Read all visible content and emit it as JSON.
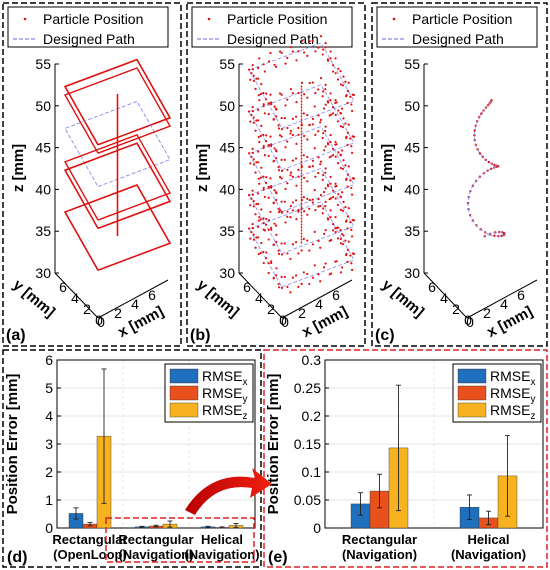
{
  "panels_3d": [
    {
      "label": "(a)",
      "legend": [
        "Particle Position",
        "Designed Path"
      ],
      "zlabel": "z [mm]",
      "ylabel": "y [mm]",
      "xlabel": "x [mm]",
      "zticks": [
        "55",
        "50",
        "45",
        "40",
        "35",
        "30"
      ],
      "yticks": [
        "6",
        "4",
        "2",
        "0"
      ],
      "xticks": [
        "0",
        "2",
        "4",
        "6"
      ]
    },
    {
      "label": "(b)",
      "legend": [
        "Particle Position",
        "Designed Path"
      ],
      "zlabel": "z [mm]",
      "ylabel": "y [mm]",
      "xlabel": "x [mm]",
      "zticks": [
        "55",
        "50",
        "45",
        "40",
        "35",
        "30"
      ],
      "yticks": [
        "6",
        "4",
        "2",
        "0"
      ],
      "xticks": [
        "0",
        "2",
        "4",
        "6"
      ]
    },
    {
      "label": "(c)",
      "legend": [
        "Particle Position",
        "Designed Path"
      ],
      "zlabel": "z [mm]",
      "ylabel": "y [mm]",
      "xlabel": "x [mm]",
      "zticks": [
        "55",
        "50",
        "45",
        "40",
        "35",
        "30"
      ],
      "yticks": [
        "6",
        "4",
        "2",
        "0"
      ],
      "xticks": [
        "0",
        "2",
        "4",
        "6"
      ]
    }
  ],
  "chart_data": [
    {
      "type": "bar",
      "panel": "(d)",
      "ylabel": "Position Error [mm]",
      "ylim": [
        0,
        6
      ],
      "yticks": [
        "0",
        "1",
        "2",
        "3",
        "4",
        "5",
        "6"
      ],
      "categories": [
        [
          "Rectangular",
          "(OpenLoop)"
        ],
        [
          "Rectangular",
          "(Navigation)"
        ],
        [
          "Helical",
          "(Navigation)"
        ]
      ],
      "series": [
        {
          "name": "RMSE",
          "sub": "x",
          "color": "#1f6fbd",
          "values": [
            0.52,
            0.04,
            0.04
          ],
          "err": [
            0.2,
            0.02,
            0.02
          ]
        },
        {
          "name": "RMSE",
          "sub": "y",
          "color": "#e8501c",
          "values": [
            0.14,
            0.07,
            0.02
          ],
          "err": [
            0.06,
            0.03,
            0.02
          ]
        },
        {
          "name": "RMSE",
          "sub": "z",
          "color": "#f6b21f",
          "values": [
            3.28,
            0.14,
            0.09
          ],
          "err": [
            2.4,
            0.11,
            0.07
          ]
        }
      ],
      "legend_position": "top-right",
      "grid": true
    },
    {
      "type": "bar",
      "panel": "(e)",
      "ylabel": "Position Error [mm]",
      "ylim": [
        0,
        0.3
      ],
      "yticks": [
        "0",
        "0.05",
        "0.1",
        "0.15",
        "0.2",
        "0.25",
        "0.3"
      ],
      "categories": [
        [
          "Rectangular",
          "(Navigation)"
        ],
        [
          "Helical",
          "(Navigation)"
        ]
      ],
      "series": [
        {
          "name": "RMSE",
          "sub": "x",
          "color": "#1f6fbd",
          "values": [
            0.043,
            0.037
          ],
          "err": [
            0.02,
            0.022
          ]
        },
        {
          "name": "RMSE",
          "sub": "y",
          "color": "#e8501c",
          "values": [
            0.066,
            0.018
          ],
          "err": [
            0.03,
            0.012
          ]
        },
        {
          "name": "RMSE",
          "sub": "z",
          "color": "#f6b21f",
          "values": [
            0.143,
            0.093
          ],
          "err": [
            0.112,
            0.072
          ]
        }
      ],
      "legend_position": "top-right",
      "grid": true
    }
  ],
  "colors": {
    "particle": "#e01010",
    "path": "#8888ee",
    "highlight": "#e02020",
    "arrow": "#e8190f"
  }
}
